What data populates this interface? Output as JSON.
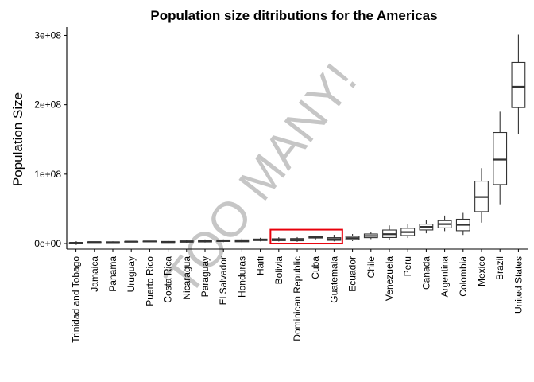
{
  "chart_data": {
    "type": "box",
    "title": "Population size ditributions for the Americas",
    "xlabel": "",
    "ylabel": "Population Size",
    "ylim": [
      -8000000,
      312000000
    ],
    "yticks": [
      0,
      100000000,
      200000000,
      300000000
    ],
    "ytick_labels": [
      "0e+00",
      "1e+08",
      "2e+08",
      "3e+08"
    ],
    "grid": false,
    "annotation": "TOO MANY!",
    "highlight": {
      "from": "Bolivia",
      "to": "Guatemala",
      "color": "#e8000b",
      "ymin": 0,
      "ymax": 20000000
    },
    "categories": [
      "Trinidad and Tobago",
      "Jamaica",
      "Panama",
      "Uruguay",
      "Puerto Rico",
      "Costa Rica",
      "Nicaragua",
      "Paraguay",
      "El Salvador",
      "Honduras",
      "Haiti",
      "Bolivia",
      "Dominican Republic",
      "Cuba",
      "Guatemala",
      "Ecuador",
      "Chile",
      "Venezuela",
      "Peru",
      "Canada",
      "Argentina",
      "Colombia",
      "Mexico",
      "Brazil",
      "United States"
    ],
    "boxes": [
      {
        "min": 660000,
        "q1": 870000,
        "median": 1000000,
        "q3": 1100000,
        "max": 1250000,
        "outliers": [
          660000,
          700000
        ]
      },
      {
        "min": 1500000,
        "q1": 1900000,
        "median": 2100000,
        "q3": 2400000,
        "max": 2700000,
        "outliers": []
      },
      {
        "min": 900000,
        "q1": 1400000,
        "median": 1800000,
        "q3": 2400000,
        "max": 3200000,
        "outliers": []
      },
      {
        "min": 2300000,
        "q1": 2600000,
        "median": 2800000,
        "q3": 3000000,
        "max": 3400000,
        "outliers": []
      },
      {
        "min": 2200000,
        "q1": 2600000,
        "median": 3000000,
        "q3": 3400000,
        "max": 3900000,
        "outliers": []
      },
      {
        "min": 900000,
        "q1": 1600000,
        "median": 2200000,
        "q3": 3000000,
        "max": 3900000,
        "outliers": []
      },
      {
        "min": 1200000,
        "q1": 2000000,
        "median": 2900000,
        "q3": 3800000,
        "max": 5300000,
        "outliers": []
      },
      {
        "min": 1500000,
        "q1": 2300000,
        "median": 3000000,
        "q3": 4200000,
        "max": 6000000,
        "outliers": []
      },
      {
        "min": 2000000,
        "q1": 3000000,
        "median": 4000000,
        "q3": 5200000,
        "max": 6000000,
        "outliers": []
      },
      {
        "min": 1500000,
        "q1": 2500000,
        "median": 3700000,
        "q3": 5300000,
        "max": 7500000,
        "outliers": []
      },
      {
        "min": 3200000,
        "q1": 4300000,
        "median": 5300000,
        "q3": 6500000,
        "max": 8300000,
        "outliers": []
      },
      {
        "min": 3000000,
        "q1": 4200000,
        "median": 5300000,
        "q3": 6900000,
        "max": 9100000,
        "outliers": []
      },
      {
        "min": 2500000,
        "q1": 4000000,
        "median": 5500000,
        "q3": 7200000,
        "max": 9300000,
        "outliers": []
      },
      {
        "min": 6000000,
        "q1": 8000000,
        "median": 9500000,
        "q3": 10600000,
        "max": 11200000,
        "outliers": []
      },
      {
        "min": 3100000,
        "q1": 4600000,
        "median": 6300000,
        "q3": 8500000,
        "max": 12600000,
        "outliers": []
      },
      {
        "min": 3500000,
        "q1": 5500000,
        "median": 7800000,
        "q3": 10300000,
        "max": 13800000,
        "outliers": []
      },
      {
        "min": 6400000,
        "q1": 8500000,
        "median": 11000000,
        "q3": 13800000,
        "max": 16300000,
        "outliers": []
      },
      {
        "min": 5400000,
        "q1": 8700000,
        "median": 13500000,
        "q3": 19500000,
        "max": 26100000,
        "outliers": []
      },
      {
        "min": 8000000,
        "q1": 11500000,
        "median": 16500000,
        "q3": 22000000,
        "max": 28700000,
        "outliers": []
      },
      {
        "min": 14800000,
        "q1": 19600000,
        "median": 24000000,
        "q3": 28000000,
        "max": 33400000,
        "outliers": []
      },
      {
        "min": 17900000,
        "q1": 22500000,
        "median": 28000000,
        "q3": 33000000,
        "max": 40300000,
        "outliers": []
      },
      {
        "min": 12400000,
        "q1": 18500000,
        "median": 27000000,
        "q3": 35000000,
        "max": 44200000,
        "outliers": []
      },
      {
        "min": 30100000,
        "q1": 46000000,
        "median": 67000000,
        "q3": 90000000,
        "max": 108700000,
        "outliers": []
      },
      {
        "min": 56600000,
        "q1": 85000000,
        "median": 121000000,
        "q3": 160000000,
        "max": 190000000,
        "outliers": []
      },
      {
        "min": 157600000,
        "q1": 196000000,
        "median": 226000000,
        "q3": 261000000,
        "max": 301100000,
        "outliers": []
      }
    ]
  }
}
